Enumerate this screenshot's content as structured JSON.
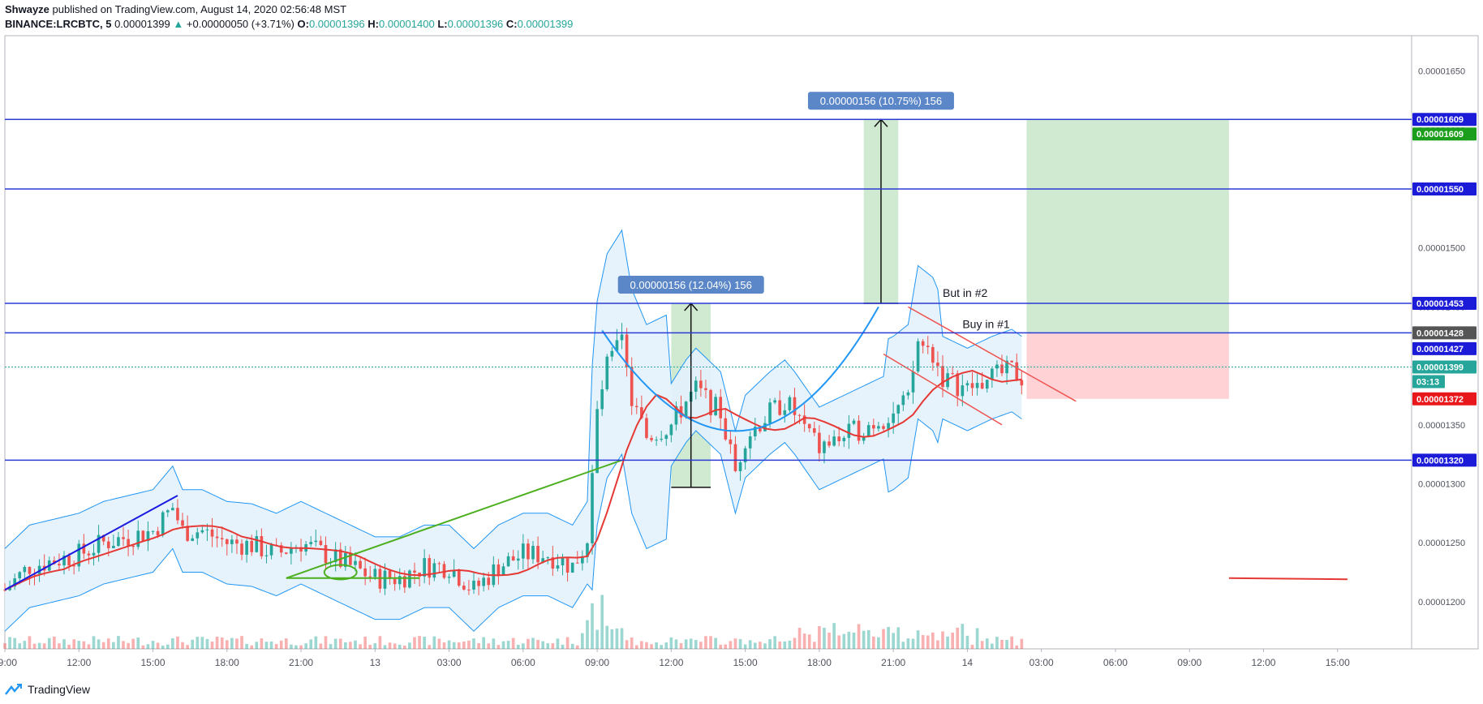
{
  "header": {
    "author": "Shwayze",
    "published": " published on TradingView.com, August 14, 2020 02:56:48 MST",
    "symbol": "BINANCE:LRCBTC, 5",
    "last": "0.00001399",
    "change_arrow": "▲",
    "change": "+0.00000050 (+3.71%)",
    "o_label": "O:",
    "o_value": "0.00001396",
    "h_label": "H:",
    "h_value": "0.00001400",
    "l_label": "L:",
    "l_value": "0.00001396",
    "c_label": "C:",
    "c_value": "0.00001399"
  },
  "footer": {
    "brand": "TradingView",
    "logo_icon": "tradingview-logo-icon"
  },
  "colors": {
    "up": "#26a69a",
    "down": "#ef5350",
    "hline": "#2b3bd6",
    "band": "#2196f3",
    "band_fill": "#e3f2fd",
    "ma": "#e53935",
    "target_zone": "#c8e6c9",
    "stop_zone": "#ffcdd2",
    "green_line": "#4caf1f"
  },
  "chart_data": {
    "type": "candlestick",
    "symbol": "LRCBTC",
    "exchange": "BINANCE",
    "interval": "5",
    "y_ticks": [
      "0.00001200",
      "0.00001250",
      "0.00001300",
      "0.00001350",
      "0.00001400",
      "0.00001450",
      "0.00001500",
      "0.00001550",
      "0.00001600",
      "0.00001650"
    ],
    "ylim": [
      1.16e-05,
      1.68e-05
    ],
    "x_ticks": [
      "09:00",
      "12:00",
      "15:00",
      "18:00",
      "21:00",
      "13",
      "03:00",
      "06:00",
      "09:00",
      "12:00",
      "15:00",
      "18:00",
      "21:00",
      "14",
      "03:00",
      "06:00",
      "09:00",
      "12:00",
      "15:00"
    ],
    "horizontal_levels": [
      1.609e-05,
      1.55e-05,
      1.453e-05,
      1.428e-05,
      1.32e-05
    ],
    "price_labels": [
      {
        "text": "0.00001609",
        "color": "#1c1cd8"
      },
      {
        "text": "0.00001609",
        "color": "#1b9e1b"
      },
      {
        "text": "0.00001550",
        "color": "#1c1cd8"
      },
      {
        "text": "0.00001453",
        "color": "#1c1cd8"
      },
      {
        "text": "0.00001428",
        "color": "#555555"
      },
      {
        "text": "0.00001427",
        "color": "#1c1cd8"
      },
      {
        "text": "0.00001399",
        "color": "#26a69a"
      },
      {
        "text": "03:13",
        "color": "#26a69a"
      },
      {
        "text": "0.00001372",
        "color": "#e8171c"
      },
      {
        "text": "0.00001320",
        "color": "#1c1cd8"
      }
    ],
    "price_range_labels": [
      "0.00000156 (12.04%) 156",
      "0.00000156 (10.75%) 156"
    ],
    "annotations": [
      "But in #2",
      "Buy in #1"
    ],
    "close_path": [
      [
        0,
        1.21e-05
      ],
      [
        5,
        1.23e-05
      ],
      [
        10,
        1.235e-05
      ],
      [
        15,
        1.24e-05
      ],
      [
        20,
        1.25e-05
      ],
      [
        25,
        1.255e-05
      ],
      [
        30,
        1.26e-05
      ],
      [
        34,
        1.28e-05
      ],
      [
        36,
        1.26e-05
      ],
      [
        40,
        1.26e-05
      ],
      [
        45,
        1.25e-05
      ],
      [
        50,
        1.248e-05
      ],
      [
        55,
        1.24e-05
      ],
      [
        60,
        1.25e-05
      ],
      [
        65,
        1.24e-05
      ],
      [
        70,
        1.23e-05
      ],
      [
        75,
        1.22e-05
      ],
      [
        80,
        1.22e-05
      ],
      [
        85,
        1.23e-05
      ],
      [
        90,
        1.23e-05
      ],
      [
        95,
        1.21e-05
      ],
      [
        100,
        1.23e-05
      ],
      [
        105,
        1.24e-05
      ],
      [
        110,
        1.24e-05
      ],
      [
        115,
        1.23e-05
      ],
      [
        118,
        1.25e-05
      ],
      [
        120,
        1.36e-05
      ],
      [
        122,
        1.4e-05
      ],
      [
        125,
        1.42e-05
      ],
      [
        127,
        1.37e-05
      ],
      [
        130,
        1.34e-05
      ],
      [
        135,
        1.35e-05
      ],
      [
        138,
        1.37e-05
      ],
      [
        140,
        1.38e-05
      ],
      [
        145,
        1.36e-05
      ],
      [
        148,
        1.31e-05
      ],
      [
        150,
        1.34e-05
      ],
      [
        155,
        1.36e-05
      ],
      [
        158,
        1.37e-05
      ],
      [
        160,
        1.36e-05
      ],
      [
        165,
        1.33e-05
      ],
      [
        170,
        1.34e-05
      ],
      [
        175,
        1.35e-05
      ],
      [
        180,
        1.36e-05
      ],
      [
        183,
        1.37e-05
      ],
      [
        185,
        1.42e-05
      ],
      [
        188,
        1.41e-05
      ],
      [
        190,
        1.39e-05
      ],
      [
        195,
        1.38e-05
      ],
      [
        200,
        1.39e-05
      ],
      [
        204,
        1.396e-05
      ],
      [
        206,
        1.39e-05
      ]
    ]
  }
}
